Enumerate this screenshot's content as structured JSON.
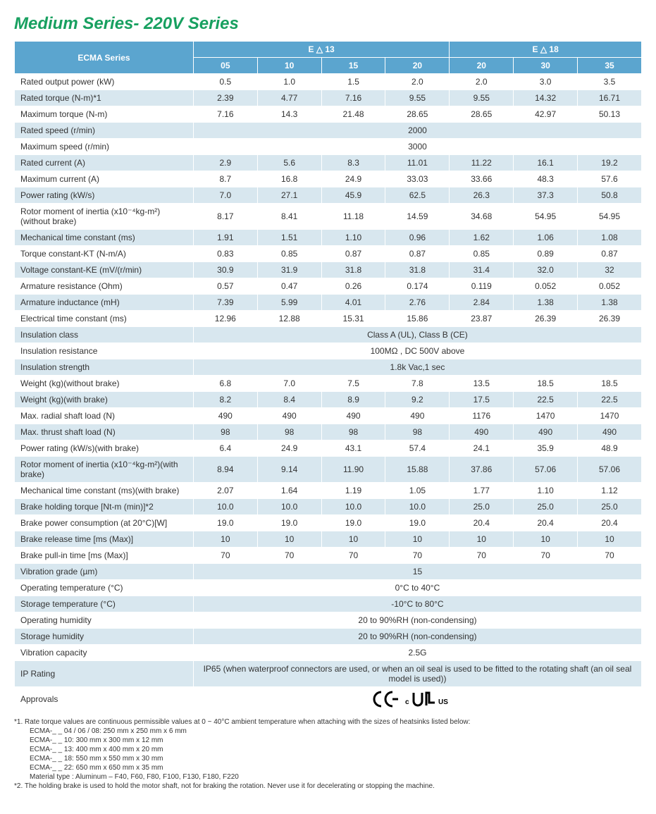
{
  "title": "Medium Series- 220V Series",
  "colors": {
    "headerBg": "#5ba5cf",
    "shadeBg": "#d8e7ef",
    "titleColor": "#18a060"
  },
  "header": {
    "mainLabel": "ECMA Series",
    "groups": [
      {
        "label": "E △ 13",
        "span": 4
      },
      {
        "label": "E △ 18",
        "span": 3
      }
    ],
    "subcols": [
      "05",
      "10",
      "15",
      "20",
      "20",
      "30",
      "35"
    ]
  },
  "rows": [
    {
      "shade": false,
      "label": "Rated output power (kW)",
      "cells": [
        "0.5",
        "1.0",
        "1.5",
        "2.0",
        "2.0",
        "3.0",
        "3.5"
      ]
    },
    {
      "shade": true,
      "label": "Rated torque (N-m)*1",
      "cells": [
        "2.39",
        "4.77",
        "7.16",
        "9.55",
        "9.55",
        "14.32",
        "16.71"
      ]
    },
    {
      "shade": false,
      "label": "Maximum torque (N-m)",
      "cells": [
        "7.16",
        "14.3",
        "21.48",
        "28.65",
        "28.65",
        "42.97",
        "50.13"
      ]
    },
    {
      "shade": true,
      "label": "Rated speed (r/min)",
      "span": "2000"
    },
    {
      "shade": false,
      "label": "Maximum speed (r/min)",
      "span": "3000"
    },
    {
      "shade": true,
      "label": "Rated current (A)",
      "cells": [
        "2.9",
        "5.6",
        "8.3",
        "11.01",
        "11.22",
        "16.1",
        "19.2"
      ]
    },
    {
      "shade": false,
      "label": "Maximum current (A)",
      "cells": [
        "8.7",
        "16.8",
        "24.9",
        "33.03",
        "33.66",
        "48.3",
        "57.6"
      ]
    },
    {
      "shade": true,
      "label": "Power rating (kW/s)",
      "cells": [
        "7.0",
        "27.1",
        "45.9",
        "62.5",
        "26.3",
        "37.3",
        "50.8"
      ]
    },
    {
      "shade": false,
      "label": "Rotor moment of inertia (x10⁻⁴kg-m²)(without brake)",
      "cells": [
        "8.17",
        "8.41",
        "11.18",
        "14.59",
        "34.68",
        "54.95",
        "54.95"
      ]
    },
    {
      "shade": true,
      "label": "Mechanical time constant (ms)",
      "cells": [
        "1.91",
        "1.51",
        "1.10",
        "0.96",
        "1.62",
        "1.06",
        "1.08"
      ]
    },
    {
      "shade": false,
      "label": "Torque constant-KT (N-m/A)",
      "cells": [
        "0.83",
        "0.85",
        "0.87",
        "0.87",
        "0.85",
        "0.89",
        "0.87"
      ]
    },
    {
      "shade": true,
      "label": "Voltage constant-KE (mV/(r/min)",
      "cells": [
        "30.9",
        "31.9",
        "31.8",
        "31.8",
        "31.4",
        "32.0",
        "32"
      ]
    },
    {
      "shade": false,
      "label": "Armature resistance (Ohm)",
      "cells": [
        "0.57",
        "0.47",
        "0.26",
        "0.174",
        "0.119",
        "0.052",
        "0.052"
      ]
    },
    {
      "shade": true,
      "label": "Armature inductance (mH)",
      "cells": [
        "7.39",
        "5.99",
        "4.01",
        "2.76",
        "2.84",
        "1.38",
        "1.38"
      ]
    },
    {
      "shade": false,
      "label": "Electrical time constant (ms)",
      "cells": [
        "12.96",
        "12.88",
        "15.31",
        "15.86",
        "23.87",
        "26.39",
        "26.39"
      ]
    },
    {
      "shade": true,
      "label": "Insulation class",
      "span": "Class A (UL), Class B (CE)"
    },
    {
      "shade": false,
      "label": "Insulation resistance",
      "span": "100MΩ , DC 500V above"
    },
    {
      "shade": true,
      "label": "Insulation strength",
      "span": "1.8k Vac,1 sec"
    },
    {
      "shade": false,
      "label": "Weight (kg)(without brake)",
      "cells": [
        "6.8",
        "7.0",
        "7.5",
        "7.8",
        "13.5",
        "18.5",
        "18.5"
      ]
    },
    {
      "shade": true,
      "label": "Weight (kg)(with brake)",
      "cells": [
        "8.2",
        "8.4",
        "8.9",
        "9.2",
        "17.5",
        "22.5",
        "22.5"
      ]
    },
    {
      "shade": false,
      "label": "Max. radial shaft load (N)",
      "cells": [
        "490",
        "490",
        "490",
        "490",
        "1176",
        "1470",
        "1470"
      ]
    },
    {
      "shade": true,
      "label": "Max. thrust shaft load (N)",
      "cells": [
        "98",
        "98",
        "98",
        "98",
        "490",
        "490",
        "490"
      ]
    },
    {
      "shade": false,
      "label": "Power rating (kW/s)(with brake)",
      "cells": [
        "6.4",
        "24.9",
        "43.1",
        "57.4",
        "24.1",
        "35.9",
        "48.9"
      ]
    },
    {
      "shade": true,
      "label": "Rotor moment of inertia (x10⁻⁴kg-m²)(with brake)",
      "cells": [
        "8.94",
        "9.14",
        "11.90",
        "15.88",
        "37.86",
        "57.06",
        "57.06"
      ]
    },
    {
      "shade": false,
      "label": "Mechanical time constant (ms)(with brake)",
      "cells": [
        "2.07",
        "1.64",
        "1.19",
        "1.05",
        "1.77",
        "1.10",
        "1.12"
      ]
    },
    {
      "shade": true,
      "label": "Brake holding torque [Nt-m (min)]*2",
      "cells": [
        "10.0",
        "10.0",
        "10.0",
        "10.0",
        "25.0",
        "25.0",
        "25.0"
      ]
    },
    {
      "shade": false,
      "label": "Brake power consumption (at 20°C)[W]",
      "cells": [
        "19.0",
        "19.0",
        "19.0",
        "19.0",
        "20.4",
        "20.4",
        "20.4"
      ]
    },
    {
      "shade": true,
      "label": "Brake release time [ms (Max)]",
      "cells": [
        "10",
        "10",
        "10",
        "10",
        "10",
        "10",
        "10"
      ]
    },
    {
      "shade": false,
      "label": "Brake pull-in time [ms (Max)]",
      "cells": [
        "70",
        "70",
        "70",
        "70",
        "70",
        "70",
        "70"
      ]
    },
    {
      "shade": true,
      "label": "Vibration grade (µm)",
      "span": "15"
    },
    {
      "shade": false,
      "label": "Operating temperature (°C)",
      "span": "0°C  to 40°C"
    },
    {
      "shade": true,
      "label": "Storage temperature (°C)",
      "span": "-10°C  to 80°C"
    },
    {
      "shade": false,
      "label": "Operating humidity",
      "span": "20 to 90%RH (non-condensing)"
    },
    {
      "shade": true,
      "label": "Storage humidity",
      "span": "20 to 90%RH (non-condensing)"
    },
    {
      "shade": false,
      "label": "Vibration capacity",
      "span": "2.5G"
    },
    {
      "shade": true,
      "label": "IP Rating",
      "span": "IP65 (when waterproof connectors are used, or when an oil seal is used to be fitted to the rotating shaft (an oil seal model is used))"
    },
    {
      "shade": false,
      "label": "Approvals",
      "approvals": true
    }
  ],
  "footnotes": {
    "lines": [
      "*1.  Rate torque values are continuous permissible values at 0 ~ 40°C ambient temperature when attaching with the sizes of heatsinks listed below:",
      "     ECMA-_ _ 04 / 06 / 08: 250 mm x 250 mm x 6 mm",
      "     ECMA-_ _ 10: 300 mm x 300 mm x 12 mm",
      "     ECMA-_ _ 13: 400 mm x 400 mm x 20 mm",
      "     ECMA-_ _ 18: 550 mm x 550 mm x 30 mm",
      "     ECMA-_ _ 22: 650 mm x 650 mm x 35 mm",
      "     Material type : Aluminum – F40, F60, F80, F100, F130, F180, F220",
      "*2.  The holding brake is used to hold the motor shaft, not for braking the rotation. Never use it for decelerating or stopping the machine."
    ]
  }
}
